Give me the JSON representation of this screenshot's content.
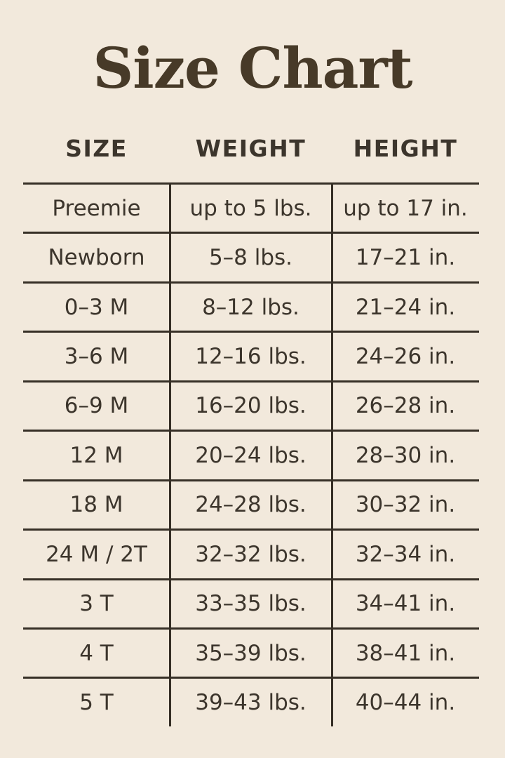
{
  "page": {
    "background_color": "#f2e9dc",
    "text_color": "#3c352c",
    "title_color": "#473a28",
    "line_color": "#362f26"
  },
  "title": "Size Chart",
  "table": {
    "headers": {
      "size": "SIZE",
      "weight": "WEIGHT",
      "height": "HEIGHT"
    },
    "rows": [
      {
        "size": "Preemie",
        "weight": "up to 5 lbs.",
        "height": "up to 17 in."
      },
      {
        "size": "Newborn",
        "weight": "5–8 lbs.",
        "height": "17–21 in."
      },
      {
        "size": "0–3 M",
        "weight": "8–12 lbs.",
        "height": "21–24 in."
      },
      {
        "size": "3–6 M",
        "weight": "12–16 lbs.",
        "height": "24–26 in."
      },
      {
        "size": "6–9 M",
        "weight": "16–20 lbs.",
        "height": "26–28 in."
      },
      {
        "size": "12 M",
        "weight": "20–24 lbs.",
        "height": "28–30 in."
      },
      {
        "size": "18 M",
        "weight": "24–28 lbs.",
        "height": "30–32 in."
      },
      {
        "size": "24 M / 2T",
        "weight": "32–32 lbs.",
        "height": "32–34 in."
      },
      {
        "size": "3 T",
        "weight": "33–35 lbs.",
        "height": "34–41 in."
      },
      {
        "size": "4 T",
        "weight": "35–39 lbs.",
        "height": "38–41 in."
      },
      {
        "size": "5 T",
        "weight": "39–43 lbs.",
        "height": "40–44 in."
      }
    ]
  },
  "chart_data": {
    "type": "table",
    "title": "Size Chart",
    "columns": [
      "SIZE",
      "WEIGHT",
      "HEIGHT"
    ],
    "rows": [
      [
        "Preemie",
        "up to 5 lbs.",
        "up to 17 in."
      ],
      [
        "Newborn",
        "5–8 lbs.",
        "17–21 in."
      ],
      [
        "0–3 M",
        "8–12 lbs.",
        "21–24 in."
      ],
      [
        "3–6 M",
        "12–16 lbs.",
        "24–26 in."
      ],
      [
        "6–9 M",
        "16–20 lbs.",
        "26–28 in."
      ],
      [
        "12 M",
        "20–24 lbs.",
        "28–30 in."
      ],
      [
        "18 M",
        "24–28 lbs.",
        "30–32 in."
      ],
      [
        "24 M / 2T",
        "32–32 lbs.",
        "32–34 in."
      ],
      [
        "3 T",
        "33–35 lbs.",
        "34–41 in."
      ],
      [
        "4 T",
        "35–39 lbs.",
        "38–41 in."
      ],
      [
        "5 T",
        "39–43 lbs.",
        "40–44 in."
      ]
    ],
    "layout": {
      "grid": "horizontal rules between rows, vertical rules between columns, no outer side borders, open bottom"
    }
  }
}
